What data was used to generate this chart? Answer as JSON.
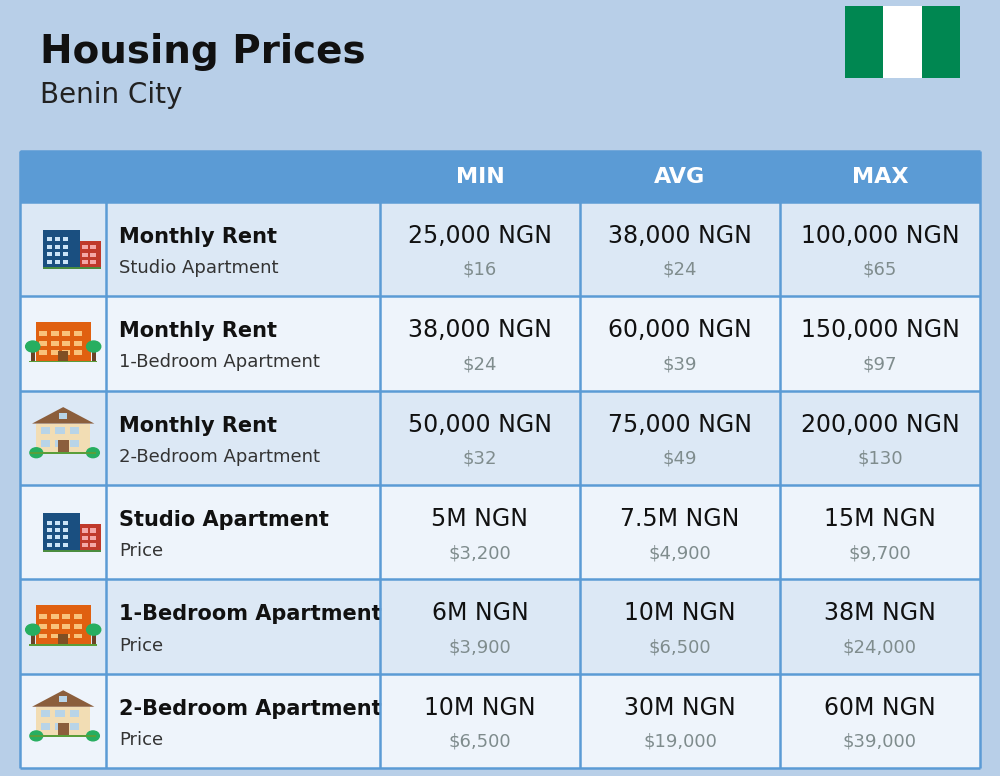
{
  "title": "Housing Prices",
  "subtitle": "Benin City",
  "background_color": "#b8cfe8",
  "header_bg_color": "#5b9bd5",
  "header_text_color": "#ffffff",
  "row_bg_even": "#dce8f5",
  "row_bg_odd": "#eef4fb",
  "col_divider_color": "#5b9bd5",
  "columns": [
    "MIN",
    "AVG",
    "MAX"
  ],
  "rows": [
    {
      "label1": "Monthly Rent",
      "label2": "Studio Apartment",
      "icon_type": "blue_building",
      "min_ngn": "25,000 NGN",
      "min_usd": "$16",
      "avg_ngn": "38,000 NGN",
      "avg_usd": "$24",
      "max_ngn": "100,000 NGN",
      "max_usd": "$65"
    },
    {
      "label1": "Monthly Rent",
      "label2": "1-Bedroom Apartment",
      "icon_type": "orange_building",
      "min_ngn": "38,000 NGN",
      "min_usd": "$24",
      "avg_ngn": "60,000 NGN",
      "avg_usd": "$39",
      "max_ngn": "150,000 NGN",
      "max_usd": "$97"
    },
    {
      "label1": "Monthly Rent",
      "label2": "2-Bedroom Apartment",
      "icon_type": "beige_building",
      "min_ngn": "50,000 NGN",
      "min_usd": "$32",
      "avg_ngn": "75,000 NGN",
      "avg_usd": "$49",
      "max_ngn": "200,000 NGN",
      "max_usd": "$130"
    },
    {
      "label1": "Studio Apartment",
      "label2": "Price",
      "icon_type": "blue_building",
      "min_ngn": "5M NGN",
      "min_usd": "$3,200",
      "avg_ngn": "7.5M NGN",
      "avg_usd": "$4,900",
      "max_ngn": "15M NGN",
      "max_usd": "$9,700"
    },
    {
      "label1": "1-Bedroom Apartment",
      "label2": "Price",
      "icon_type": "orange_building",
      "min_ngn": "6M NGN",
      "min_usd": "$3,900",
      "avg_ngn": "10M NGN",
      "avg_usd": "$6,500",
      "max_ngn": "38M NGN",
      "max_usd": "$24,000"
    },
    {
      "label1": "2-Bedroom Apartment",
      "label2": "Price",
      "icon_type": "beige_building",
      "min_ngn": "10M NGN",
      "min_usd": "$6,500",
      "avg_ngn": "30M NGN",
      "avg_usd": "$19,000",
      "max_ngn": "60M NGN",
      "max_usd": "$39,000"
    }
  ],
  "nigeria_flag_colors": [
    "#008751",
    "#ffffff",
    "#008751"
  ],
  "title_fontsize": 28,
  "subtitle_fontsize": 20,
  "header_fontsize": 16,
  "cell_ngn_fontsize": 17,
  "cell_usd_fontsize": 13,
  "label1_fontsize": 15,
  "label2_fontsize": 13
}
